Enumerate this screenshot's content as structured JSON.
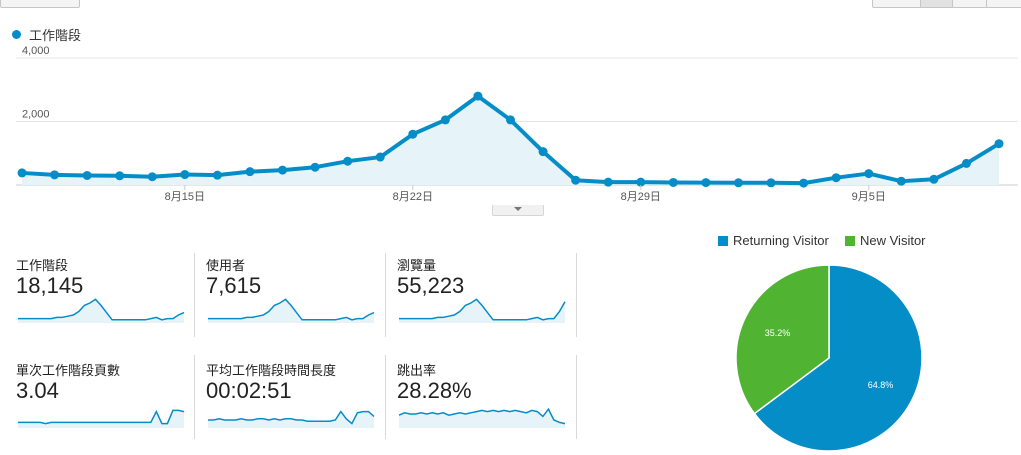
{
  "session_legend": "工作階段",
  "chart_data": [
    {
      "type": "area",
      "series": [
        {
          "name": "工作階段",
          "values": [
            380,
            320,
            300,
            290,
            260,
            330,
            310,
            420,
            470,
            560,
            750,
            880,
            1600,
            2050,
            2800,
            2050,
            1050,
            150,
            90,
            90,
            80,
            75,
            70,
            70,
            60,
            230,
            360,
            120,
            180,
            680,
            1300
          ]
        }
      ],
      "x_tick_labels": [
        "8月15日",
        "8月22日",
        "8月29日",
        "9月5日"
      ],
      "x_tick_index": [
        5,
        12,
        19,
        26
      ],
      "y_tick_labels": [
        "2,000",
        "4,000"
      ],
      "ylim": [
        0,
        4000
      ],
      "grid": true,
      "line_color": "#058dc7",
      "fill_color": "#e6f4fa"
    },
    {
      "type": "pie",
      "legend": [
        {
          "label": "Returning Visitor",
          "color": "#058dc7"
        },
        {
          "label": "New Visitor",
          "color": "#50b432"
        }
      ],
      "slices": [
        {
          "label": "Returning Visitor",
          "value": 64.8,
          "text": "64.8%",
          "color": "#058dc7"
        },
        {
          "label": "New Visitor",
          "value": 35.2,
          "text": "35.2%",
          "color": "#50b432"
        }
      ]
    }
  ],
  "metrics": [
    {
      "label": "工作階段",
      "value": "18,145",
      "spark": [
        2,
        2,
        2,
        2,
        2,
        2,
        2,
        3,
        3,
        4,
        5,
        8,
        13,
        15,
        18,
        13,
        7,
        1,
        1,
        1,
        1,
        1,
        1,
        1,
        2,
        3,
        1,
        2,
        2,
        5,
        7
      ]
    },
    {
      "label": "使用者",
      "value": "7,615",
      "spark": [
        2,
        2,
        2,
        2,
        2,
        2,
        2,
        3,
        3,
        4,
        5,
        8,
        13,
        15,
        18,
        13,
        7,
        1,
        1,
        1,
        1,
        1,
        1,
        1,
        2,
        3,
        1,
        2,
        2,
        5,
        7
      ]
    },
    {
      "label": "瀏覽量",
      "value": "55,223",
      "spark": [
        2,
        2,
        2,
        2,
        2,
        2,
        2,
        3,
        3,
        4,
        5,
        8,
        13,
        15,
        18,
        13,
        7,
        1,
        1,
        1,
        1,
        1,
        1,
        1,
        2,
        3,
        1,
        2,
        2,
        8,
        16
      ]
    },
    {
      "label": "單次工作階段頁數",
      "value": "3.04",
      "spark": [
        3,
        3,
        3,
        3,
        3,
        2,
        3,
        3,
        3,
        3,
        3,
        3,
        3,
        3,
        3,
        3,
        3,
        3,
        3,
        3,
        3,
        3,
        3,
        3,
        3,
        12,
        2,
        2,
        13,
        13,
        12
      ]
    },
    {
      "label": "平均工作階段時間長度",
      "value": "00:02:51",
      "spark": [
        5,
        5,
        6,
        5,
        5,
        5,
        6,
        5,
        5,
        6,
        6,
        5,
        6,
        5,
        6,
        6,
        5,
        5,
        4,
        4,
        4,
        4,
        4,
        5,
        12,
        6,
        2,
        11,
        12,
        12,
        8
      ]
    },
    {
      "label": "跳出率",
      "value": "28.28%",
      "spark": [
        9,
        11,
        10,
        10,
        11,
        10,
        11,
        10,
        11,
        9,
        10,
        11,
        10,
        11,
        12,
        13,
        12,
        13,
        12,
        13,
        12,
        13,
        12,
        11,
        13,
        12,
        8,
        14,
        5,
        3,
        2
      ]
    }
  ]
}
